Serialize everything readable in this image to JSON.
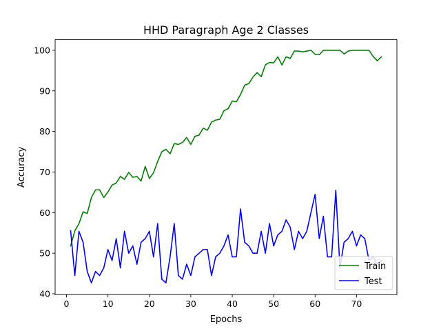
{
  "chart_data": {
    "type": "line",
    "title": "HHD Paragraph Age 2 Classes",
    "xlabel": "Epochs",
    "ylabel": "Accuracy",
    "xlim": [
      -2.75,
      79.75
    ],
    "ylim": [
      39.8,
      102.6
    ],
    "xticks": [
      0,
      10,
      20,
      30,
      40,
      50,
      60,
      70
    ],
    "yticks": [
      40,
      50,
      60,
      70,
      80,
      90,
      100
    ],
    "grid": false,
    "legend_position": "lower right",
    "x": [
      1,
      2,
      3,
      4,
      5,
      6,
      7,
      8,
      9,
      10,
      11,
      12,
      13,
      14,
      15,
      16,
      17,
      18,
      19,
      20,
      21,
      22,
      23,
      24,
      25,
      26,
      27,
      28,
      29,
      30,
      31,
      32,
      33,
      34,
      35,
      36,
      37,
      38,
      39,
      40,
      41,
      42,
      43,
      44,
      45,
      46,
      47,
      48,
      49,
      50,
      51,
      52,
      53,
      54,
      55,
      56,
      57,
      58,
      59,
      60,
      61,
      62,
      63,
      64,
      65,
      66,
      67,
      68,
      69,
      70,
      71,
      72,
      73,
      74,
      75,
      76
    ],
    "series": [
      {
        "name": "Train",
        "color": "#008000",
        "values": [
          51.8,
          55.5,
          57.3,
          60.2,
          59.8,
          63.7,
          65.6,
          65.6,
          63.7,
          65.1,
          66.8,
          67.3,
          68.9,
          68.2,
          69.9,
          68.7,
          68.9,
          67.8,
          71.4,
          68.4,
          69.8,
          72.6,
          75.0,
          75.6,
          74.5,
          77.0,
          76.8,
          77.3,
          78.5,
          76.8,
          78.8,
          79.1,
          80.8,
          80.3,
          82.3,
          82.8,
          83.0,
          85.1,
          85.6,
          87.5,
          87.3,
          89.1,
          91.4,
          91.8,
          93.4,
          94.5,
          93.5,
          96.4,
          97.0,
          96.9,
          98.4,
          96.4,
          98.4,
          98.0,
          99.8,
          99.8,
          99.6,
          99.8,
          100.0,
          99.0,
          98.9,
          100.0,
          100.0,
          100.0,
          100.0,
          100.0,
          99.1,
          99.8,
          100.0,
          100.0,
          100.0,
          100.0,
          100.0,
          98.5,
          97.4,
          98.4
        ]
      },
      {
        "name": "Test",
        "color": "#0000ff",
        "values": [
          55.5,
          44.5,
          55.4,
          52.7,
          45.5,
          42.7,
          45.5,
          44.5,
          46.4,
          50.9,
          48.2,
          53.6,
          46.4,
          55.4,
          50.0,
          51.8,
          47.3,
          52.7,
          53.6,
          55.4,
          49.1,
          57.3,
          43.6,
          42.7,
          49.1,
          57.3,
          44.5,
          43.6,
          47.3,
          44.5,
          49.1,
          50.0,
          50.9,
          50.9,
          44.5,
          49.1,
          50.0,
          51.8,
          54.5,
          49.1,
          49.1,
          60.9,
          52.7,
          51.8,
          50.0,
          50.0,
          55.4,
          50.0,
          57.3,
          51.8,
          54.5,
          55.4,
          58.2,
          56.4,
          50.9,
          55.4,
          53.6,
          55.4,
          60.0,
          64.5,
          53.6,
          59.1,
          49.1,
          49.1,
          65.5,
          46.4,
          52.7,
          53.6,
          55.4,
          51.8,
          54.5,
          53.6,
          48.2,
          49.1,
          47.3,
          48.2
        ]
      }
    ]
  }
}
